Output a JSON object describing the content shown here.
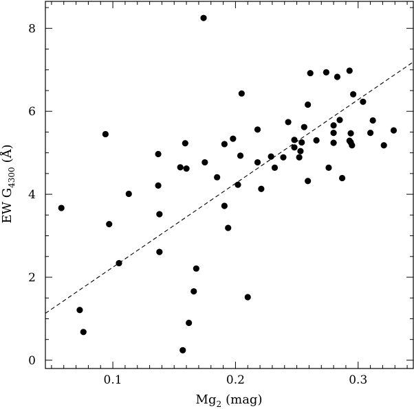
{
  "chart_data": {
    "type": "scatter",
    "title": "",
    "xlabel": "Mg",
    "xlabel_sub": "2",
    "xlabel_unit": "(mag)",
    "ylabel": "EW G",
    "ylabel_sub": "4300",
    "ylabel_unit": "(Å)",
    "xlim": [
      0.045,
      0.345
    ],
    "ylim": [
      -0.2,
      8.65
    ],
    "x_ticks": [
      0.1,
      0.2,
      0.3
    ],
    "x_tick_labels": [
      "0.1",
      "0.2",
      "0.3"
    ],
    "y_ticks": [
      0,
      2,
      4,
      6,
      8
    ],
    "y_tick_labels": [
      "0",
      "2",
      "4",
      "6",
      "8"
    ],
    "grid": false,
    "legend": "none",
    "fit_line": {
      "style": "dashed",
      "x": [
        0.045,
        0.345
      ],
      "y": [
        1.13,
        7.19
      ]
    },
    "series": [
      {
        "marker": "filled-circle",
        "color": "#000000",
        "points": [
          [
            0.058,
            3.67
          ],
          [
            0.073,
            1.21
          ],
          [
            0.076,
            0.68
          ],
          [
            0.094,
            5.45
          ],
          [
            0.097,
            3.28
          ],
          [
            0.105,
            2.34
          ],
          [
            0.113,
            4.01
          ],
          [
            0.137,
            4.97
          ],
          [
            0.137,
            4.21
          ],
          [
            0.138,
            3.52
          ],
          [
            0.138,
            2.61
          ],
          [
            0.155,
            4.65
          ],
          [
            0.157,
            0.24
          ],
          [
            0.159,
            5.23
          ],
          [
            0.16,
            4.62
          ],
          [
            0.162,
            0.9
          ],
          [
            0.166,
            1.66
          ],
          [
            0.168,
            2.21
          ],
          [
            0.174,
            8.25
          ],
          [
            0.175,
            4.77
          ],
          [
            0.185,
            4.41
          ],
          [
            0.191,
            5.21
          ],
          [
            0.191,
            3.72
          ],
          [
            0.194,
            3.19
          ],
          [
            0.198,
            5.34
          ],
          [
            0.202,
            4.23
          ],
          [
            0.204,
            4.93
          ],
          [
            0.205,
            6.43
          ],
          [
            0.21,
            1.52
          ],
          [
            0.218,
            4.77
          ],
          [
            0.218,
            5.56
          ],
          [
            0.221,
            4.13
          ],
          [
            0.229,
            4.91
          ],
          [
            0.232,
            4.64
          ],
          [
            0.239,
            4.89
          ],
          [
            0.243,
            5.74
          ],
          [
            0.248,
            5.31
          ],
          [
            0.248,
            5.13
          ],
          [
            0.252,
            4.89
          ],
          [
            0.253,
            5.04
          ],
          [
            0.254,
            5.25
          ],
          [
            0.256,
            5.62
          ],
          [
            0.259,
            6.16
          ],
          [
            0.259,
            4.32
          ],
          [
            0.261,
            6.92
          ],
          [
            0.266,
            5.3
          ],
          [
            0.274,
            6.94
          ],
          [
            0.276,
            4.64
          ],
          [
            0.28,
            5.66
          ],
          [
            0.28,
            5.48
          ],
          [
            0.28,
            5.24
          ],
          [
            0.283,
            6.83
          ],
          [
            0.285,
            5.79
          ],
          [
            0.287,
            4.39
          ],
          [
            0.293,
            6.98
          ],
          [
            0.293,
            5.29
          ],
          [
            0.294,
            5.47
          ],
          [
            0.294,
            5.25
          ],
          [
            0.295,
            5.18
          ],
          [
            0.296,
            6.41
          ],
          [
            0.304,
            6.23
          ],
          [
            0.31,
            5.48
          ],
          [
            0.312,
            5.78
          ],
          [
            0.321,
            5.18
          ],
          [
            0.329,
            5.54
          ]
        ]
      }
    ]
  }
}
